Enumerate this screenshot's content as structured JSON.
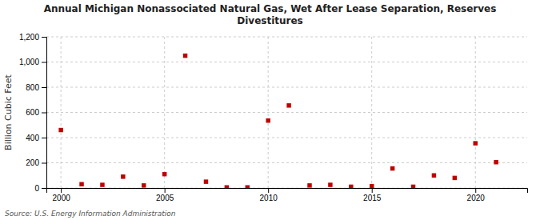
{
  "chart_data": {
    "type": "scatter",
    "title": "Annual Michigan Nonassociated Natural Gas, Wet After Lease Separation, Reserves\nDivestitures",
    "y_label": "Billion Cubic Feet",
    "source": "Source: U.S. Energy Information Administration",
    "x": [
      2000,
      2001,
      2002,
      2003,
      2004,
      2005,
      2006,
      2007,
      2008,
      2009,
      2010,
      2011,
      2012,
      2013,
      2014,
      2015,
      2016,
      2017,
      2018,
      2019,
      2020,
      2021
    ],
    "values": [
      460,
      30,
      25,
      90,
      20,
      110,
      1050,
      50,
      5,
      5,
      535,
      655,
      20,
      25,
      10,
      15,
      155,
      10,
      100,
      80,
      355,
      205
    ],
    "color": "#c00000",
    "marker": "square",
    "xlim": [
      1999.3,
      2022.5
    ],
    "xticks": [
      2000,
      2005,
      2010,
      2015,
      2020
    ],
    "ylim": [
      0,
      1200
    ],
    "yticks": [
      0,
      200,
      400,
      600,
      800,
      {
        "value": 1000,
        "label": "1,000"
      },
      {
        "value": 1200,
        "label": "1,200"
      }
    ],
    "grid": true
  }
}
